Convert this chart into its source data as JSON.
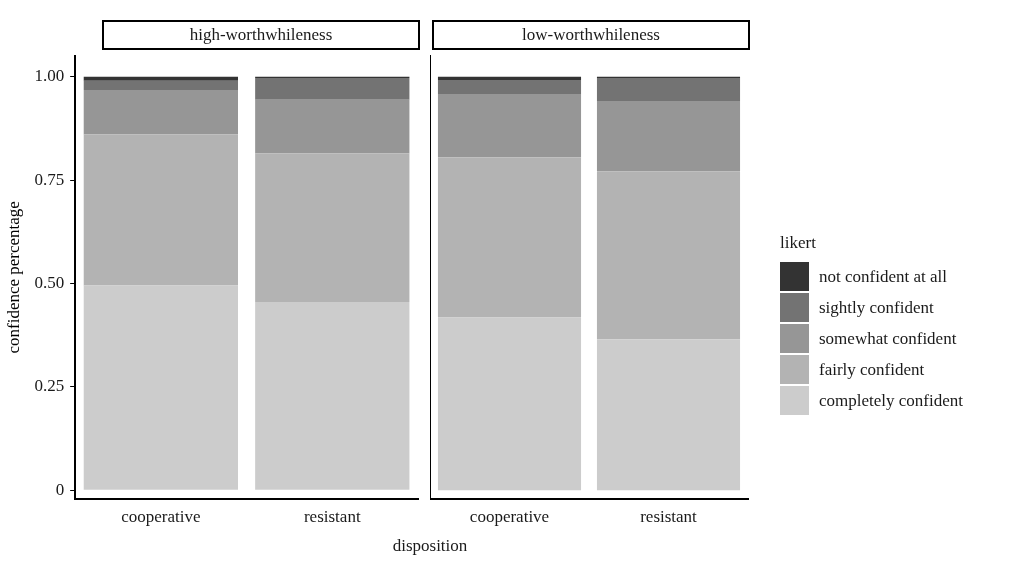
{
  "chart_data": [
    {
      "type": "bar",
      "stacked": true,
      "title": "high-worthwhileness",
      "xlabel": "disposition",
      "ylabel": "confidence percentage",
      "categories": [
        "cooperative",
        "resistant"
      ],
      "ylim": [
        -0.02,
        1.05
      ],
      "yticks": [
        0,
        0.25,
        {
          "value": 0.5,
          "label": "0.50"
        },
        0.75,
        {
          "value": 1,
          "label": "1.00"
        }
      ],
      "grid": false,
      "legend": false,
      "series": [
        {
          "color": "#cccccc",
          "values": [
            0.495,
            0.455
          ]
        },
        {
          "color": "#b3b3b3",
          "values": [
            0.365,
            0.359
          ]
        },
        {
          "color": "#969696",
          "values": [
            0.108,
            0.13
          ]
        },
        {
          "color": "#737373",
          "values": [
            0.022,
            0.053
          ]
        },
        {
          "color": "#333333",
          "values": [
            0.01,
            0.003
          ]
        }
      ]
    },
    {
      "type": "bar",
      "stacked": true,
      "title": "low-worthwhileness",
      "categories": [
        "cooperative",
        "resistant"
      ],
      "ylim": [
        -0.02,
        1.05
      ],
      "tick_labels": "x",
      "grid": false,
      "legend": "right",
      "legend_title": "likert",
      "series": [
        {
          "name": "completely confident",
          "color": "#cccccc",
          "values": [
            0.418,
            0.365
          ]
        },
        {
          "name": "fairly confident",
          "color": "#b3b3b3",
          "values": [
            0.387,
            0.406
          ]
        },
        {
          "name": "somewhat confident",
          "color": "#969696",
          "values": [
            0.153,
            0.17
          ]
        },
        {
          "name": "sightly confident",
          "color": "#737373",
          "values": [
            0.034,
            0.056
          ]
        },
        {
          "name": "not confident at all",
          "color": "#333333",
          "values": [
            0.008,
            0.003
          ]
        }
      ]
    }
  ]
}
